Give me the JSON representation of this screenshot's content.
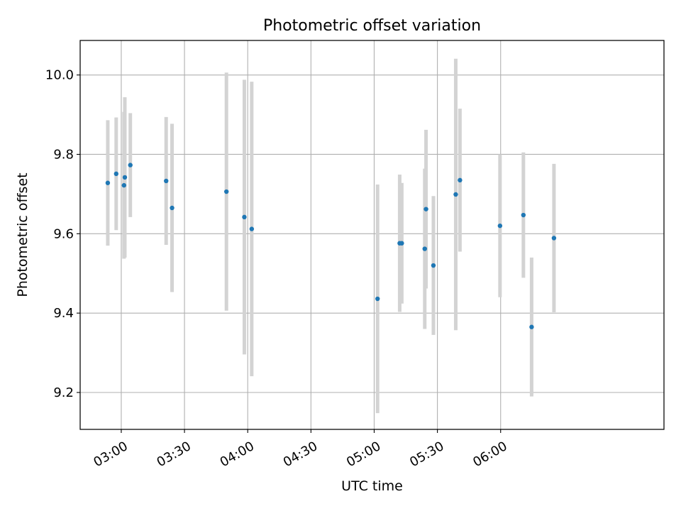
{
  "chart_data": {
    "type": "scatter",
    "title": "Photometric offset variation",
    "xlabel": "UTC time",
    "ylabel": "Photometric offset",
    "grid": true,
    "x_unit": "minutes since 00:00 UTC",
    "xlim": [
      160.5,
      437.5
    ],
    "ylim": [
      9.107,
      10.087
    ],
    "x_ticks": [
      {
        "value": 180,
        "label": "03:00"
      },
      {
        "value": 210,
        "label": "03:30"
      },
      {
        "value": 240,
        "label": "04:00"
      },
      {
        "value": 270,
        "label": "04:30"
      },
      {
        "value": 300,
        "label": "05:00"
      },
      {
        "value": 330,
        "label": "05:30"
      },
      {
        "value": 360,
        "label": "06:00"
      }
    ],
    "y_ticks": [
      {
        "value": 9.2,
        "label": "9.2"
      },
      {
        "value": 9.4,
        "label": "9.4"
      },
      {
        "value": 9.6,
        "label": "9.6"
      },
      {
        "value": 9.8,
        "label": "9.8"
      },
      {
        "value": 10.0,
        "label": "10.0"
      }
    ],
    "series": [
      {
        "name": "Photometric offset",
        "marker_color": "#1f77b4",
        "errorbar_color": "#d3d3d3",
        "points": [
          {
            "x": 173.6,
            "y": 9.728,
            "err": 0.158
          },
          {
            "x": 177.6,
            "y": 9.751,
            "err": 0.142
          },
          {
            "x": 181.3,
            "y": 9.722,
            "err": 0.185
          },
          {
            "x": 181.7,
            "y": 9.742,
            "err": 0.202
          },
          {
            "x": 184.3,
            "y": 9.773,
            "err": 0.131
          },
          {
            "x": 201.3,
            "y": 9.733,
            "err": 0.161
          },
          {
            "x": 204.1,
            "y": 9.665,
            "err": 0.212
          },
          {
            "x": 229.9,
            "y": 9.706,
            "err": 0.3
          },
          {
            "x": 238.4,
            "y": 9.642,
            "err": 0.346
          },
          {
            "x": 241.9,
            "y": 9.612,
            "err": 0.371
          },
          {
            "x": 301.6,
            "y": 9.436,
            "err": 0.288
          },
          {
            "x": 312.1,
            "y": 9.576,
            "err": 0.173
          },
          {
            "x": 313.1,
            "y": 9.576,
            "err": 0.152
          },
          {
            "x": 324.0,
            "y": 9.562,
            "err": 0.202
          },
          {
            "x": 324.6,
            "y": 9.662,
            "err": 0.2
          },
          {
            "x": 328.1,
            "y": 9.52,
            "err": 0.175
          },
          {
            "x": 338.7,
            "y": 9.699,
            "err": 0.342
          },
          {
            "x": 340.7,
            "y": 9.735,
            "err": 0.18
          },
          {
            "x": 359.7,
            "y": 9.62,
            "err": 0.18
          },
          {
            "x": 370.8,
            "y": 9.647,
            "err": 0.158
          },
          {
            "x": 374.7,
            "y": 9.365,
            "err": 0.175
          },
          {
            "x": 385.3,
            "y": 9.589,
            "err": 0.187
          }
        ]
      }
    ]
  }
}
